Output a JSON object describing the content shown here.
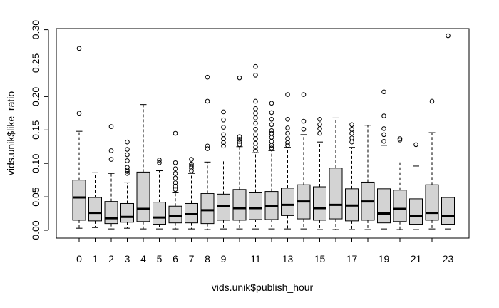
{
  "chart_data": {
    "type": "boxplot",
    "xlabel": "vids.unik$publish_hour",
    "ylabel": "vids.unik$like_ratio",
    "x_tick_labels": [
      "0",
      "1",
      "2",
      "3",
      "4",
      "5",
      "6",
      "7",
      "8",
      "9",
      "11",
      "13",
      "15",
      "17",
      "19",
      "21",
      "23"
    ],
    "y_tick_labels": [
      "0.00",
      "0.05",
      "0.10",
      "0.15",
      "0.20",
      "0.25",
      "0.30"
    ],
    "ylim": [
      0.0,
      0.305
    ],
    "box_fill": "#d3d3d3",
    "median_color": "#000000",
    "grid": false,
    "categories": [
      "0",
      "1",
      "2",
      "3",
      "4",
      "5",
      "6",
      "7",
      "8",
      "9",
      "10",
      "11",
      "12",
      "13",
      "14",
      "15",
      "16",
      "17",
      "18",
      "19",
      "20",
      "21",
      "22",
      "23"
    ],
    "boxes": [
      {
        "hour": "0",
        "whisker_low": 0.003,
        "q1": 0.015,
        "median": 0.049,
        "q3": 0.075,
        "whisker_high": 0.148,
        "outliers": [
          0.175,
          0.272
        ]
      },
      {
        "hour": "1",
        "whisker_low": 0.004,
        "q1": 0.014,
        "median": 0.026,
        "q3": 0.049,
        "whisker_high": 0.086,
        "outliers": []
      },
      {
        "hour": "2",
        "whisker_low": 0.002,
        "q1": 0.01,
        "median": 0.018,
        "q3": 0.043,
        "whisker_high": 0.085,
        "outliers": [
          0.106,
          0.119,
          0.155
        ]
      },
      {
        "hour": "3",
        "whisker_low": 0.003,
        "q1": 0.012,
        "median": 0.02,
        "q3": 0.04,
        "whisker_high": 0.071,
        "outliers": [
          0.085,
          0.088,
          0.09,
          0.094,
          0.104,
          0.113,
          0.121,
          0.132
        ]
      },
      {
        "hour": "4",
        "whisker_low": 0.002,
        "q1": 0.013,
        "median": 0.032,
        "q3": 0.087,
        "whisker_high": 0.188,
        "outliers": []
      },
      {
        "hour": "5",
        "whisker_low": 0.002,
        "q1": 0.009,
        "median": 0.019,
        "q3": 0.042,
        "whisker_high": 0.089,
        "outliers": [
          0.101,
          0.105
        ]
      },
      {
        "hour": "6",
        "whisker_low": 0.002,
        "q1": 0.011,
        "median": 0.021,
        "q3": 0.036,
        "whisker_high": 0.057,
        "outliers": [
          0.061,
          0.066,
          0.071,
          0.078,
          0.085,
          0.092,
          0.101,
          0.145
        ]
      },
      {
        "hour": "7",
        "whisker_low": 0.002,
        "q1": 0.011,
        "median": 0.024,
        "q3": 0.04,
        "whisker_high": 0.085,
        "outliers": [
          0.089,
          0.093,
          0.096,
          0.099,
          0.106
        ]
      },
      {
        "hour": "8",
        "whisker_low": 0.001,
        "q1": 0.01,
        "median": 0.03,
        "q3": 0.055,
        "whisker_high": 0.102,
        "outliers": [
          0.122,
          0.126,
          0.193,
          0.229
        ]
      },
      {
        "hour": "9",
        "whisker_low": 0.002,
        "q1": 0.015,
        "median": 0.036,
        "q3": 0.054,
        "whisker_high": 0.105,
        "outliers": [
          0.126,
          0.131,
          0.137,
          0.143,
          0.154,
          0.165,
          0.177
        ]
      },
      {
        "hour": "10",
        "whisker_low": 0.002,
        "q1": 0.015,
        "median": 0.033,
        "q3": 0.061,
        "whisker_high": 0.125,
        "outliers": [
          0.128,
          0.133,
          0.136,
          0.14,
          0.228
        ]
      },
      {
        "hour": "11",
        "whisker_low": 0.002,
        "q1": 0.016,
        "median": 0.033,
        "q3": 0.057,
        "whisker_high": 0.116,
        "outliers": [
          0.119,
          0.124,
          0.13,
          0.137,
          0.143,
          0.151,
          0.16,
          0.168,
          0.175,
          0.182,
          0.193,
          0.232,
          0.245
        ]
      },
      {
        "hour": "12",
        "whisker_low": 0.002,
        "q1": 0.016,
        "median": 0.036,
        "q3": 0.058,
        "whisker_high": 0.119,
        "outliers": [
          0.123,
          0.127,
          0.133,
          0.139,
          0.145,
          0.149,
          0.158,
          0.166,
          0.176,
          0.19
        ]
      },
      {
        "hour": "13",
        "whisker_low": 0.002,
        "q1": 0.022,
        "median": 0.038,
        "q3": 0.063,
        "whisker_high": 0.124,
        "outliers": [
          0.127,
          0.131,
          0.137,
          0.145,
          0.153,
          0.166,
          0.203
        ]
      },
      {
        "hour": "14",
        "whisker_low": 0.002,
        "q1": 0.017,
        "median": 0.043,
        "q3": 0.068,
        "whisker_high": 0.143,
        "outliers": [
          0.151,
          0.163,
          0.203
        ]
      },
      {
        "hour": "15",
        "whisker_low": 0.001,
        "q1": 0.015,
        "median": 0.033,
        "q3": 0.065,
        "whisker_high": 0.132,
        "outliers": [
          0.145,
          0.152,
          0.158,
          0.166
        ]
      },
      {
        "hour": "16",
        "whisker_low": 0.001,
        "q1": 0.017,
        "median": 0.038,
        "q3": 0.093,
        "whisker_high": 0.168,
        "outliers": []
      },
      {
        "hour": "17",
        "whisker_low": 0.001,
        "q1": 0.014,
        "median": 0.037,
        "q3": 0.062,
        "whisker_high": 0.124,
        "outliers": [
          0.132,
          0.138,
          0.145,
          0.151,
          0.158
        ]
      },
      {
        "hour": "18",
        "whisker_low": 0.001,
        "q1": 0.015,
        "median": 0.043,
        "q3": 0.072,
        "whisker_high": 0.157,
        "outliers": []
      },
      {
        "hour": "19",
        "whisker_low": 0.002,
        "q1": 0.011,
        "median": 0.025,
        "q3": 0.062,
        "whisker_high": 0.127,
        "outliers": [
          0.133,
          0.143,
          0.152,
          0.171,
          0.207
        ]
      },
      {
        "hour": "20",
        "whisker_low": 0.001,
        "q1": 0.013,
        "median": 0.032,
        "q3": 0.06,
        "whisker_high": 0.105,
        "outliers": [
          0.135,
          0.137
        ]
      },
      {
        "hour": "21",
        "whisker_low": 0.001,
        "q1": 0.009,
        "median": 0.021,
        "q3": 0.047,
        "whisker_high": 0.096,
        "outliers": [
          0.128
        ]
      },
      {
        "hour": "22",
        "whisker_low": 0.002,
        "q1": 0.015,
        "median": 0.026,
        "q3": 0.068,
        "whisker_high": 0.146,
        "outliers": [
          0.193
        ]
      },
      {
        "hour": "23",
        "whisker_low": 0.002,
        "q1": 0.009,
        "median": 0.021,
        "q3": 0.049,
        "whisker_high": 0.105,
        "outliers": [
          0.291
        ]
      }
    ]
  }
}
